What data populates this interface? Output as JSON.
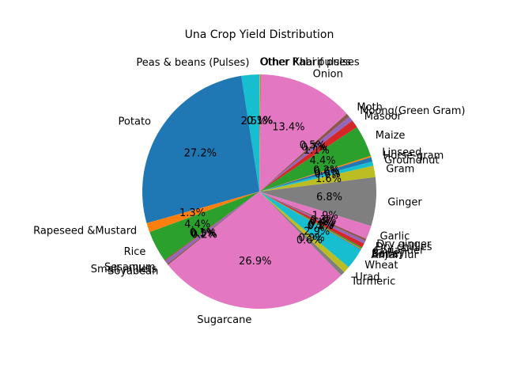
{
  "chart_data": {
    "type": "pie",
    "title": "Una Crop Yield Distribution",
    "start_angle_deg": 90,
    "direction": "counterclockwise",
    "slices": [
      {
        "label": "Peas & beans (Pulses)",
        "value": 2.5,
        "pct": "2.5%",
        "color": "#17becf"
      },
      {
        "label": "Potato",
        "value": 27.2,
        "pct": "27.2%",
        "color": "#1f77b4"
      },
      {
        "label": "Rapeseed &Mustard",
        "value": 1.3,
        "pct": "1.3%",
        "color": "#ff7f0e"
      },
      {
        "label": "Rice",
        "value": 4.4,
        "pct": "4.4%",
        "color": "#2ca02c"
      },
      {
        "label": "Sesamum",
        "value": 0.1,
        "pct": "0.1%",
        "color": "#d62728"
      },
      {
        "label": "Small millets",
        "value": 0.5,
        "pct": "0.5%",
        "color": "#9467bd"
      },
      {
        "label": "Soyabean",
        "value": 0.2,
        "pct": "0.2%",
        "color": "#8c564b"
      },
      {
        "label": "Sugarcane",
        "value": 26.9,
        "pct": "26.9%",
        "color": "#e377c2"
      },
      {
        "label": "Turmeric",
        "value": 0.6,
        "pct": "0.6%",
        "color": "#7f7f7f"
      },
      {
        "label": "Urad",
        "value": 0.9,
        "pct": "0.9%",
        "color": "#bcbd22"
      },
      {
        "label": "Wheat",
        "value": 2.9,
        "pct": "2.9%",
        "color": "#17becf"
      },
      {
        "label": "Arhar/Tur",
        "value": 0.1,
        "pct": "0.1%",
        "color": "#1f77b4"
      },
      {
        "label": "Bajra",
        "value": 0.1,
        "pct": "0.1%",
        "color": "#ff7f0e"
      },
      {
        "label": "Barley",
        "value": 0.2,
        "pct": "0.2%",
        "color": "#2ca02c"
      },
      {
        "label": "Coriander",
        "value": 0.6,
        "pct": "0.6%",
        "color": "#d62728"
      },
      {
        "label": "Dry chillies",
        "value": 0.4,
        "pct": "0.4%",
        "color": "#9467bd"
      },
      {
        "label": "Dry ginger",
        "value": 0.3,
        "pct": "0.3%",
        "color": "#8c564b"
      },
      {
        "label": "Garlic",
        "value": 1.9,
        "pct": "1.9%",
        "color": "#e377c2"
      },
      {
        "label": "Ginger",
        "value": 6.8,
        "pct": "6.8%",
        "color": "#7f7f7f"
      },
      {
        "label": "Gram",
        "value": 1.6,
        "pct": "1.6%",
        "color": "#bcbd22"
      },
      {
        "label": "Groundnut",
        "value": 0.6,
        "pct": "0.6%",
        "color": "#17becf"
      },
      {
        "label": "Horse-gram",
        "value": 0.6,
        "pct": "0.6%",
        "color": "#1f77b4"
      },
      {
        "label": "Linseed",
        "value": 0.2,
        "pct": "0.2%",
        "color": "#ff7f0e"
      },
      {
        "label": "Maize",
        "value": 4.4,
        "pct": "4.4%",
        "color": "#2ca02c"
      },
      {
        "label": "Masoor",
        "value": 1.1,
        "pct": "1.1%",
        "color": "#d62728"
      },
      {
        "label": "Moong(Green Gram)",
        "value": 0.7,
        "pct": "0.7%",
        "color": "#9467bd"
      },
      {
        "label": "Moth",
        "value": 0.5,
        "pct": "0.5%",
        "color": "#8c564b"
      },
      {
        "label": "Onion",
        "value": 13.4,
        "pct": "13.4%",
        "color": "#e377c2"
      },
      {
        "label": "Other Kharif pulses",
        "value": 0.1,
        "pct": "0.1%",
        "color": "#7f7f7f"
      },
      {
        "label": "Other Rabi pulses",
        "value": 0.1,
        "pct": "0.1%",
        "color": "#bcbd22"
      }
    ]
  }
}
